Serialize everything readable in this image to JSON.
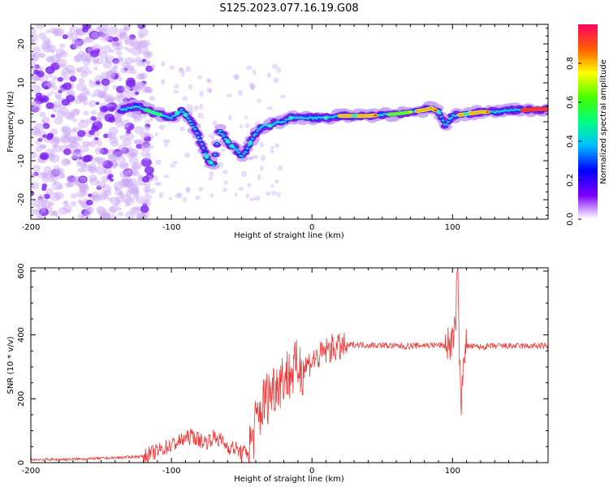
{
  "title": "S125.2023.077.16.19.G08",
  "colors": {
    "snr_line": "#ef3a3a",
    "spectrogram_faint": "#c9a6f5",
    "spectrogram_base": "#7a1ff0"
  },
  "colorbar": {
    "label": "Normalized spectral amplitude",
    "ticks": [
      "0.0",
      "0.2",
      "0.4",
      "0.6",
      "0.8"
    ],
    "range": [
      0,
      1
    ],
    "colormap": "rainbow"
  },
  "chart_data": [
    {
      "type": "heatmap",
      "title": "S125.2023.077.16.19.G08",
      "xlabel": "Height of straight line (km)",
      "ylabel": "Frequency (Hz)",
      "xlim": [
        -200,
        168
      ],
      "ylim": [
        -25,
        25
      ],
      "x_ticks": [
        "-200",
        "-100",
        "0",
        "100"
      ],
      "y_ticks": [
        "-20",
        "-10",
        "0",
        "10",
        "20"
      ],
      "ridge": {
        "x": [
          -135,
          -125,
          -118,
          -110,
          -100,
          -93,
          -88,
          -83,
          -78,
          -74,
          -70,
          -66,
          -62,
          -58,
          -54,
          -50,
          -46,
          -42,
          -38,
          -34,
          -30,
          -25,
          -20,
          -15,
          -10,
          -5,
          0,
          10,
          20,
          30,
          40,
          50,
          60,
          70,
          80,
          85,
          90,
          95,
          100,
          110,
          120,
          130,
          140,
          150,
          160,
          168
        ],
        "y": [
          3,
          4,
          3,
          2,
          1,
          3,
          1,
          -2,
          -6,
          -10,
          -11,
          -2,
          -4,
          -6,
          -7,
          -9,
          -7,
          -4,
          -2,
          -1,
          -1,
          0,
          0,
          1,
          1,
          1,
          1,
          1,
          1.5,
          1.5,
          1.5,
          1.8,
          2,
          2.5,
          3,
          3.5,
          2.5,
          -1,
          1.5,
          2,
          2.5,
          2.5,
          3,
          3,
          3.2,
          3.2
        ]
      },
      "colorbar_range": [
        0,
        1
      ]
    },
    {
      "type": "line",
      "xlabel": "Height of straight line (km)",
      "ylabel": "SNR (10 * v/v)",
      "xlim": [
        -200,
        168
      ],
      "ylim": [
        0,
        610
      ],
      "x_ticks": [
        "-200",
        "-100",
        "0",
        "100"
      ],
      "y_ticks": [
        "0",
        "200",
        "400",
        "600"
      ],
      "series": [
        {
          "x": [
            -200,
            -180,
            -160,
            -140,
            -120,
            -110,
            -100,
            -90,
            -85,
            -80,
            -75,
            -70,
            -65,
            -60,
            -55,
            -50,
            -45,
            -40,
            -35,
            -30,
            -25,
            -20,
            -15,
            -10,
            -5,
            0,
            5,
            10,
            15,
            20,
            25,
            30,
            40,
            50,
            60,
            70,
            80,
            90,
            95,
            100,
            102,
            103,
            104,
            105,
            106,
            108,
            110,
            120,
            130,
            140,
            150,
            160,
            168
          ],
          "y": [
            10,
            10,
            12,
            15,
            20,
            35,
            55,
            75,
            85,
            70,
            65,
            80,
            70,
            50,
            45,
            30,
            35,
            120,
            180,
            220,
            250,
            270,
            280,
            300,
            300,
            320,
            330,
            350,
            360,
            360,
            365,
            370,
            368,
            368,
            365,
            365,
            368,
            368,
            365,
            380,
            420,
            540,
            600,
            300,
            150,
            360,
            365,
            362,
            365,
            365,
            365,
            365,
            365
          ]
        }
      ]
    }
  ]
}
